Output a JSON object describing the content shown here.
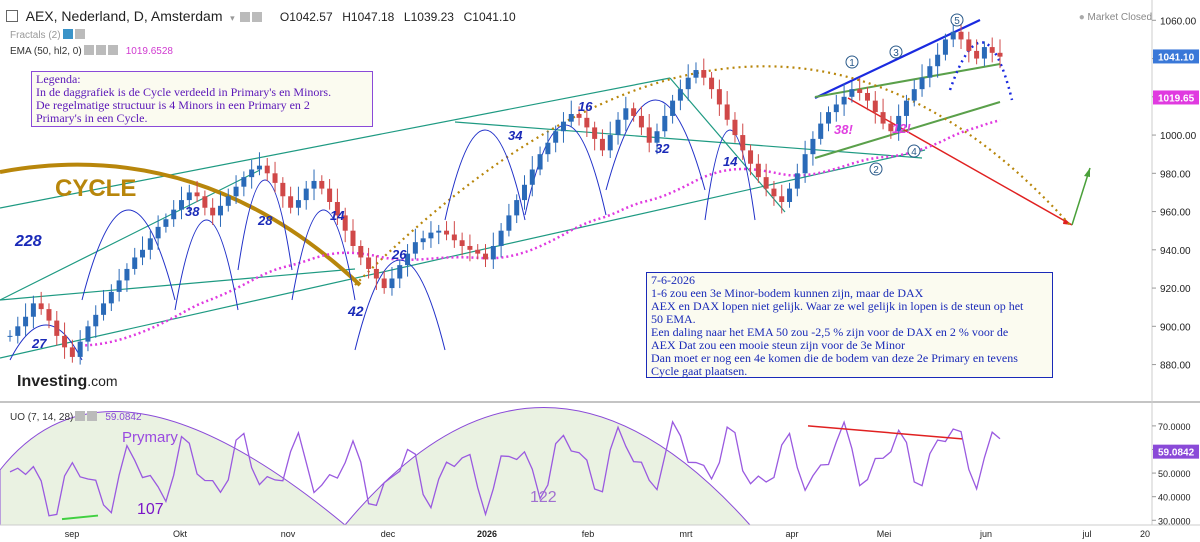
{
  "header": {
    "symbol": "AEX, Nederland, D, Amsterdam",
    "open": "O1042.57",
    "high": "H1047.18",
    "low": "L1039.23",
    "close": "C1041.10",
    "market_status": "Market Closed"
  },
  "indicators": {
    "fractals_label": "Fractals (2)",
    "ema_label": "EMA (50, hl2, 0)",
    "ema_value": "1019.6528",
    "uo_label": "UO (7, 14, 28)",
    "uo_value": "59.0842"
  },
  "legend_box": {
    "lines": [
      "Legenda:",
      "In de daggrafiek is de Cycle verdeeld in Primary's en Minors.",
      "De regelmatige structuur is 4 Minors in een Primary en 2",
      "Primary's in een Cycle."
    ]
  },
  "note_box": {
    "lines": [
      "7-6-2026",
      "1-6 zou een 3e Minor-bodem kunnen zijn, maar de DAX",
      "AEX en DAX lopen niet gelijk. Waar ze wel gelijk in lopen is de steun op het",
      "50 EMA.",
      "Een daling naar het EMA 50 zou -2,5 % zijn voor de DAX en 2 % voor de",
      "AEX Dat zou een mooie steun zijn voor de 3e Minor",
      "Dan moet er nog een 4e komen die de bodem van deze 2e Primary en tevens",
      "Cycle gaat plaatsen."
    ]
  },
  "logo": {
    "main": "Investing",
    "suffix": ".com"
  },
  "chart_data": {
    "type": "candlestick",
    "price_axis": {
      "ticks": [
        880,
        900,
        920,
        940,
        960,
        980,
        1000,
        1020,
        1040,
        1060
      ],
      "tick_labels": [
        "880.00",
        "900.00",
        "920.00",
        "940.00",
        "960.00",
        "980.00",
        "1000.00",
        "1020.00",
        "1040.00",
        "1060.00"
      ],
      "range": [
        862,
        1068
      ],
      "last_close_label": "1041.10",
      "ema_label": "1019.65",
      "colors": {
        "close_badge": "#3a78d8",
        "ema_badge": "#e03ae0"
      }
    },
    "uo_axis": {
      "ticks": [
        30,
        40,
        50,
        60,
        70
      ],
      "tick_labels": [
        "30.0000",
        "40.0000",
        "50.0000",
        "60.0000",
        "70.0000"
      ],
      "range": [
        28,
        78
      ],
      "value_label": "59.0842",
      "colors": {
        "value_badge": "#8a4ad8"
      }
    },
    "time_axis": {
      "labels": [
        "sep",
        "Okt",
        "nov",
        "dec",
        "2026",
        "feb",
        "mrt",
        "apr",
        "Mei",
        "jun",
        "jul",
        "20"
      ],
      "bold_label": "2026"
    },
    "series_closes": [
      895,
      900,
      905,
      912,
      909,
      903,
      895,
      889,
      884,
      892,
      900,
      906,
      912,
      918,
      924,
      930,
      936,
      940,
      946,
      952,
      956,
      961,
      966,
      970,
      968,
      962,
      958,
      963,
      968,
      973,
      978,
      982,
      984,
      980,
      975,
      968,
      962,
      966,
      972,
      976,
      972,
      965,
      958,
      950,
      942,
      936,
      930,
      925,
      920,
      925,
      932,
      938,
      944,
      946,
      949,
      950,
      948,
      945,
      942,
      940,
      938,
      935,
      942,
      950,
      958,
      966,
      974,
      982,
      990,
      996,
      1002,
      1007,
      1011,
      1009,
      1004,
      998,
      992,
      1000,
      1008,
      1014,
      1010,
      1004,
      996,
      1002,
      1010,
      1018,
      1024,
      1030,
      1034,
      1030,
      1024,
      1016,
      1008,
      1000,
      992,
      985,
      978,
      972,
      968,
      965,
      972,
      980,
      990,
      998,
      1006,
      1012,
      1016,
      1020,
      1024,
      1022,
      1018,
      1012,
      1006,
      1002,
      1010,
      1018,
      1024,
      1030,
      1036,
      1042,
      1050,
      1054,
      1050,
      1044,
      1040,
      1046,
      1043,
      1041
    ],
    "annotations": {
      "cycle_label": "CYCLE",
      "primary_labels": [
        "228",
        "42"
      ],
      "minor_labels": [
        "27",
        "38",
        "28",
        "14",
        "26",
        "34",
        "16",
        "32",
        "14",
        "38!",
        "12!"
      ],
      "wave_labels": [
        "1",
        "2",
        "3",
        "4",
        "5"
      ],
      "uo_labels": [
        "Prymary",
        "107",
        "122"
      ]
    },
    "colors": {
      "channel": "#1e9a82",
      "minor_arcs": "#2030c8",
      "cycle_arc": "#b8860b",
      "ema": "#e03ae0",
      "uo_line": "#9a5ae0",
      "up_candle": "#2a6ab8",
      "down_candle": "#d04848",
      "uo_fill": "#eaf2e2",
      "projection": "#b8860b",
      "down_arrow": "#e02020",
      "up_arrow": "#4aa03a"
    }
  }
}
